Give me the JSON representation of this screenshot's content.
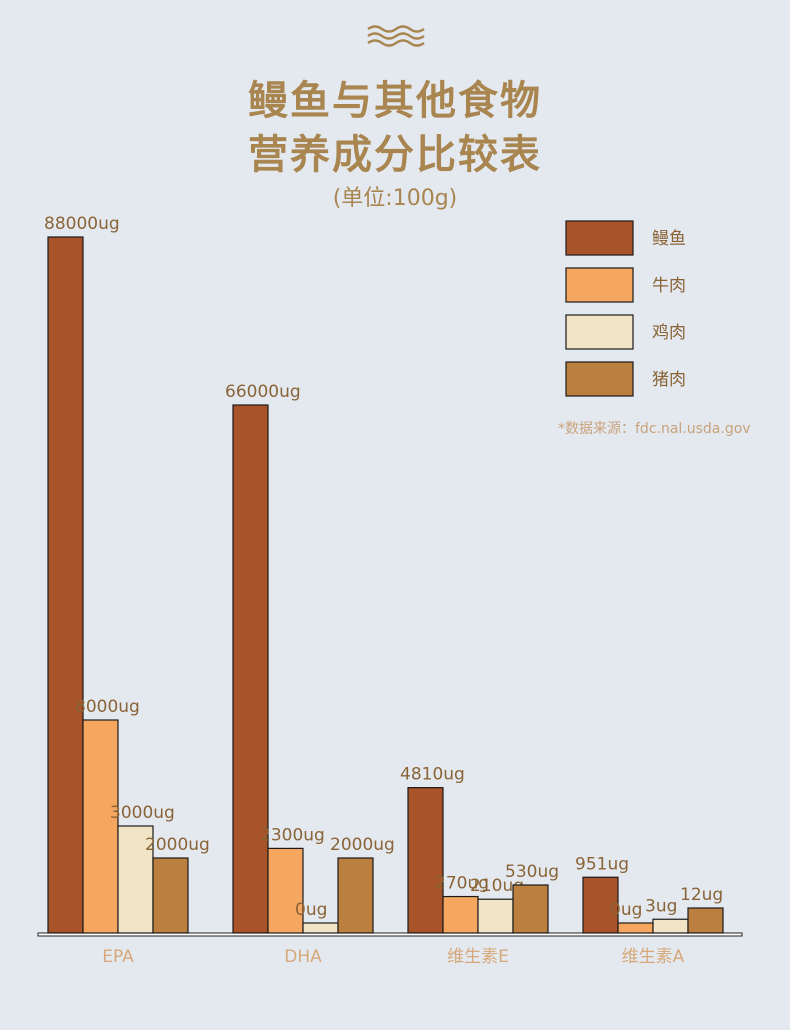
{
  "header": {
    "title_line1": "鳗鱼与其他食物",
    "title_line2": "营养成分比较表",
    "unit": "(单位:100g)"
  },
  "source_note": "*数据来源：fdc.nal.usda.gov",
  "colors": {
    "background": "#e4e9f0",
    "title": "#a98550",
    "eel": "#a9532a",
    "beef": "#f5a75f",
    "chicken": "#f1e4c6",
    "pork": "#bb8040",
    "category_label": "#d7a87a",
    "value_label": "#8a6436"
  },
  "chart_data": {
    "type": "bar",
    "categories": [
      "EPA",
      "DHA",
      "维生素E",
      "维生素A"
    ],
    "series": [
      {
        "name": "鳗鱼",
        "values": [
          88000,
          66000,
          4810,
          951
        ],
        "labels": [
          "88000ug",
          "66000ug",
          "4810ug",
          "951ug"
        ]
      },
      {
        "name": "牛肉",
        "values": [
          8000,
          2300,
          270,
          0
        ],
        "labels": [
          "8000ug",
          "2300ug",
          "270ug",
          "0ug"
        ]
      },
      {
        "name": "鸡肉",
        "values": [
          3000,
          0,
          210,
          3
        ],
        "labels": [
          "3000ug",
          "0ug",
          "210ug",
          "3ug"
        ]
      },
      {
        "name": "猪肉",
        "values": [
          2000,
          2000,
          530,
          12
        ],
        "labels": [
          "2000ug",
          "2000ug",
          "530ug",
          "12ug"
        ]
      }
    ],
    "legend_position": "top-right",
    "grid": false,
    "axis_scale": "non-linear (bar heights not proportional to values)"
  }
}
